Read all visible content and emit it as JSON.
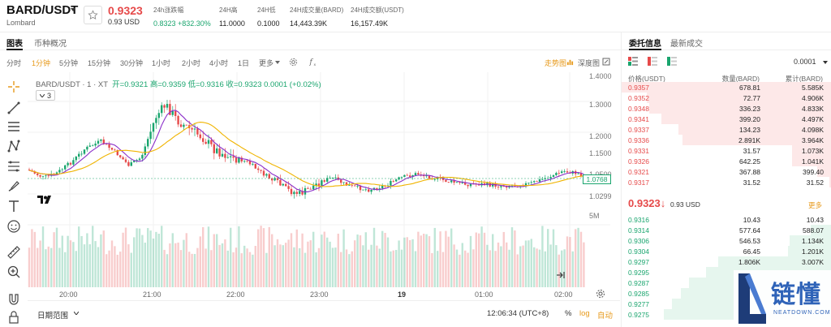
{
  "header": {
    "pair": "BARD/USDT",
    "sub": "Lombard",
    "price": "0.9323",
    "price_usd": "0.93 USD",
    "stats": [
      {
        "label": "24h涨跌幅",
        "value": "0.8323 +832.30%",
        "green": true
      },
      {
        "label": "24H高",
        "value": "11.0000"
      },
      {
        "label": "24H低",
        "value": "0.1000"
      },
      {
        "label": "24H成交量(BARD)",
        "value": "14,443.39K"
      },
      {
        "label": "24H成交额(USDT)",
        "value": "16,157.49K"
      }
    ]
  },
  "chart_tabs": [
    "图表",
    "币种概况"
  ],
  "toolbar": {
    "intervals": [
      "分时",
      "1分钟",
      "5分钟",
      "15分钟",
      "30分钟",
      "1小时",
      "2小时",
      "4小时",
      "1日",
      "更多"
    ],
    "active_index": 1,
    "right": [
      "走势图",
      "深度图"
    ]
  },
  "legend": {
    "symbol": "BARD/USDT · 1 · XT",
    "ohlc": "开=0.9321 高=0.9359 低=0.9316 收=0.9323 0.0001 (+0.02%)",
    "multiplier": "3"
  },
  "yaxis": {
    "labels": [
      "1.4000",
      "1.3000",
      "1.2000",
      "1.1500",
      "1.0500",
      "1.0299",
      "5M"
    ],
    "price_tag": "1.0768"
  },
  "xaxis": {
    "labels": [
      "20:00",
      "21:00",
      "22:00",
      "23:00",
      "19",
      "01:00",
      "02:00"
    ],
    "bold_index": 4
  },
  "bottom": {
    "date_range": "日期范围",
    "clock": "12:06:34 (UTC+8)",
    "percent": "%",
    "log": "log",
    "auto": "自动"
  },
  "orderbook": {
    "tabs": [
      "委托信息",
      "最新成交"
    ],
    "tick": "0.0001",
    "headers": [
      "价格(USDT)",
      "数量(BARD)",
      "累计(BARD)"
    ],
    "asks": [
      {
        "p": "0.9357",
        "q": "678.81",
        "c": "5.585K",
        "d": 1.0
      },
      {
        "p": "0.9352",
        "q": "72.77",
        "c": "4.906K",
        "d": 0.88
      },
      {
        "p": "0.9348",
        "q": "336.23",
        "c": "4.833K",
        "d": 0.87
      },
      {
        "p": "0.9341",
        "q": "399.20",
        "c": "4.497K",
        "d": 0.81
      },
      {
        "p": "0.9337",
        "q": "134.23",
        "c": "4.098K",
        "d": 0.73
      },
      {
        "p": "0.9336",
        "q": "2.891K",
        "c": "3.964K",
        "d": 0.71
      },
      {
        "p": "0.9331",
        "q": "31.57",
        "c": "1.073K",
        "d": 0.19
      },
      {
        "p": "0.9326",
        "q": "642.25",
        "c": "1.041K",
        "d": 0.19
      },
      {
        "p": "0.9321",
        "q": "367.88",
        "c": "399.40",
        "d": 0.07
      },
      {
        "p": "0.9317",
        "q": "31.52",
        "c": "31.52",
        "d": 0.01
      }
    ],
    "mid_price": "0.9323↓",
    "mid_usd": "0.93 USD",
    "more": "更多",
    "bids": [
      {
        "p": "0.9316",
        "q": "10.43",
        "c": "10.43",
        "d": 0.0
      },
      {
        "p": "0.9314",
        "q": "577.64",
        "c": "588.07",
        "d": 0.1
      },
      {
        "p": "0.9306",
        "q": "546.53",
        "c": "1.134K",
        "d": 0.2
      },
      {
        "p": "0.9304",
        "q": "66.45",
        "c": "1.201K",
        "d": 0.21
      },
      {
        "p": "0.9297",
        "q": "1.806K",
        "c": "3.007K",
        "d": 0.54
      },
      {
        "p": "0.9295",
        "q": "",
        "c": "",
        "d": 0.6
      },
      {
        "p": "0.9287",
        "q": "",
        "c": "",
        "d": 0.68
      },
      {
        "p": "0.9285",
        "q": "",
        "c": "",
        "d": 0.72
      },
      {
        "p": "0.9277",
        "q": "",
        "c": "",
        "d": 0.76
      },
      {
        "p": "0.9275",
        "q": "",
        "c": "",
        "d": 0.8
      }
    ]
  },
  "watermark": {
    "text": "链懂",
    "sub": "NEATDOWN.COM"
  },
  "colors": {
    "up": "#1aa56e",
    "down": "#e64a4a",
    "accent": "#e79a1c",
    "ma1": "#8b2fc9",
    "ma2": "#f0b400"
  }
}
